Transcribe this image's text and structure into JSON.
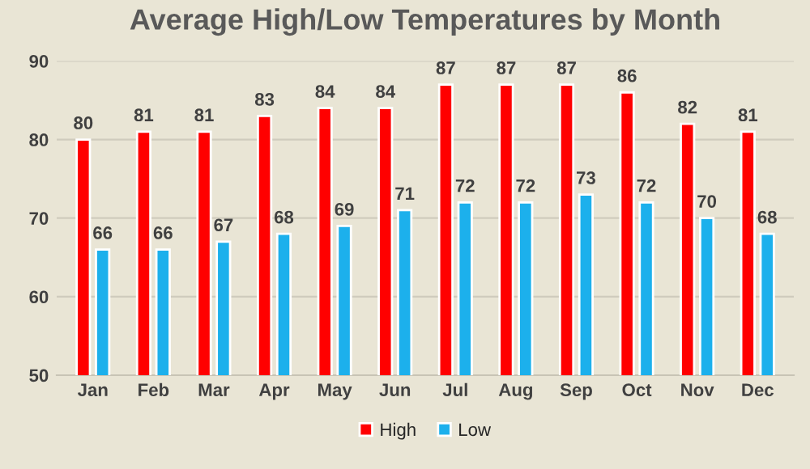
{
  "chart_data": {
    "type": "bar",
    "title": "Average High/Low Temperatures by Month",
    "categories": [
      "Jan",
      "Feb",
      "Mar",
      "Apr",
      "May",
      "Jun",
      "Jul",
      "Aug",
      "Sep",
      "Oct",
      "Nov",
      "Dec"
    ],
    "series": [
      {
        "name": "High",
        "color": "#ff0000",
        "values": [
          80,
          81,
          81,
          83,
          84,
          84,
          87,
          87,
          87,
          86,
          82,
          81
        ]
      },
      {
        "name": "Low",
        "color": "#1cb0ec",
        "values": [
          66,
          66,
          67,
          68,
          69,
          71,
          72,
          72,
          73,
          72,
          70,
          68
        ]
      }
    ],
    "ylim": [
      50,
      90
    ],
    "yticks": [
      50,
      60,
      70,
      80,
      90
    ],
    "grid": "y",
    "legend": "bottom",
    "data_labels": true
  }
}
